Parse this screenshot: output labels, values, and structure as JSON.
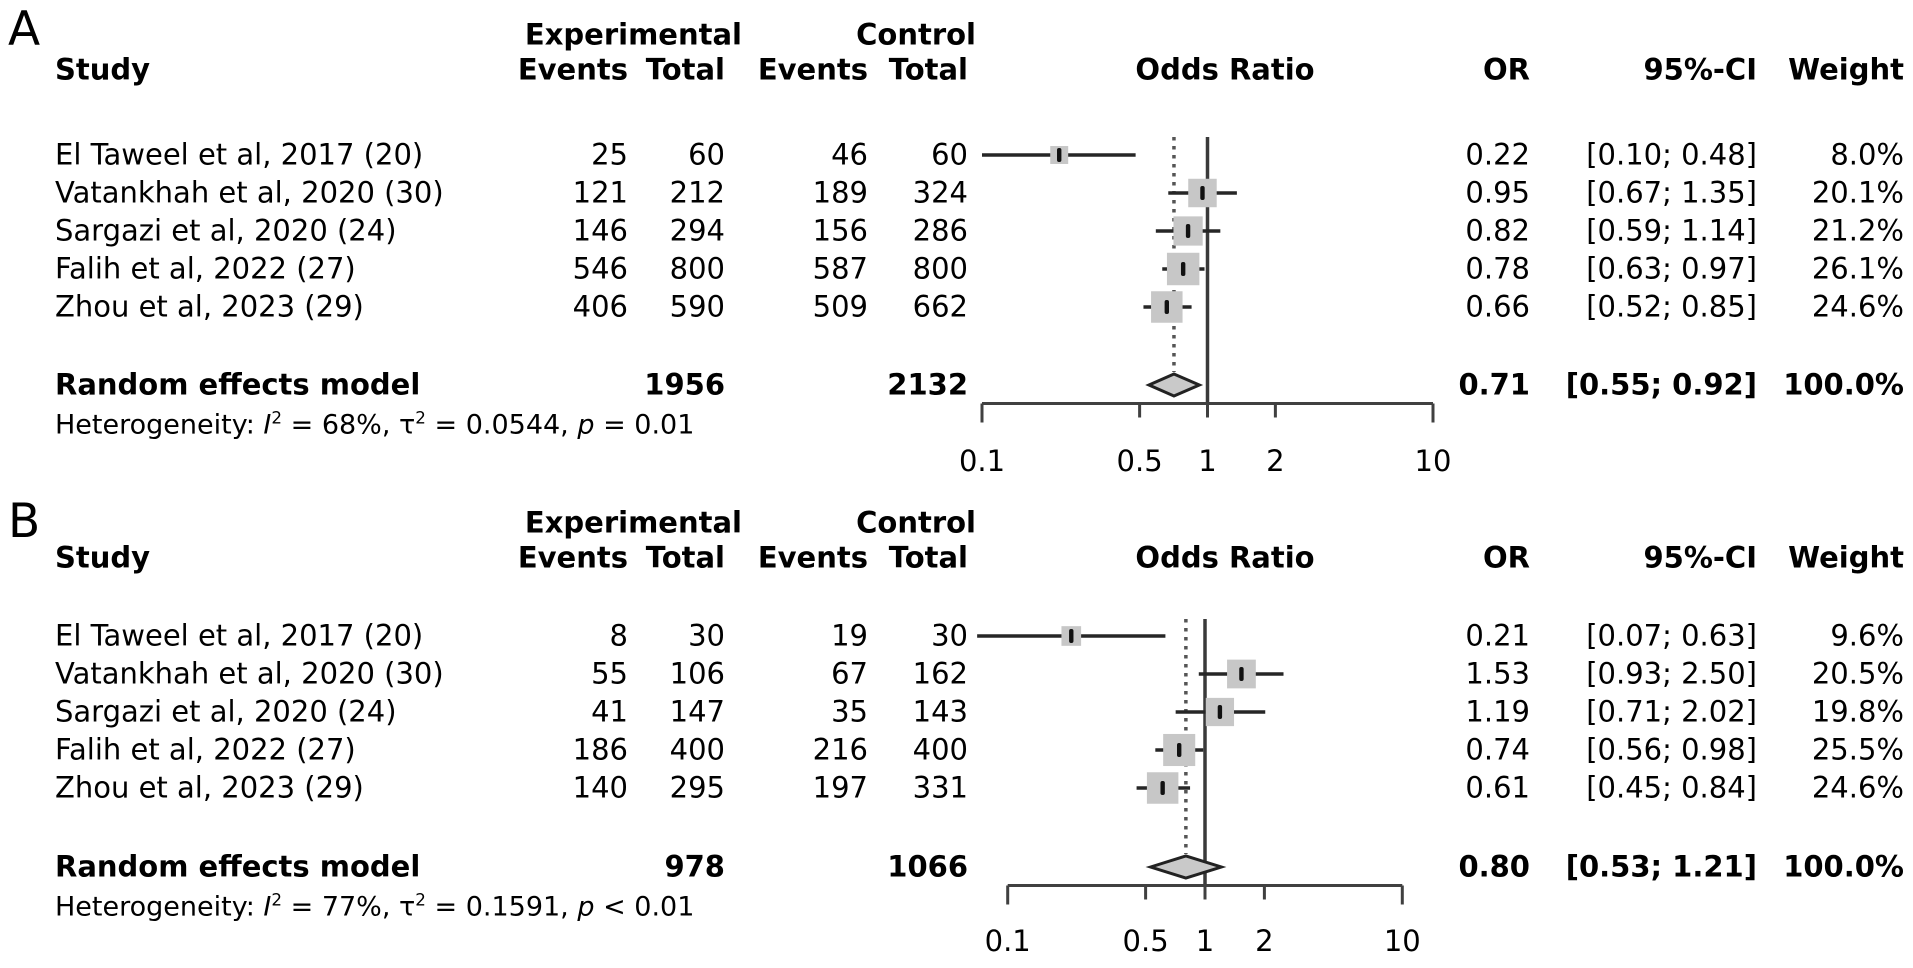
{
  "colors": {
    "background": "#ffffff",
    "text": "#000000",
    "ci_line": "#262626",
    "square_fill": "#c7c7c7",
    "point_marker": "#111111",
    "null_ref_line": "#3a3a3a",
    "pooled_dotted_line": "#555555",
    "diamond_fill": "#c9c9c9",
    "diamond_border": "#222222",
    "axis": "#404040"
  },
  "chart_data": [
    {
      "type": "forest",
      "panel_label": "A",
      "effect_measure": "Odds Ratio",
      "columns": {
        "study": "Study",
        "group_experimental": "Experimental",
        "group_control": "Control",
        "events1": "Events",
        "total1": "Total",
        "events2": "Events",
        "total2": "Total",
        "effect_header": "Odds Ratio",
        "or": "OR",
        "ci": "95%-CI",
        "weight": "Weight"
      },
      "x_axis": {
        "scale": "log",
        "lim": [
          0.1,
          10
        ],
        "ticks": [
          "0.1",
          "0.5",
          "1",
          "2",
          "10"
        ],
        "tick_values": [
          0.1,
          0.5,
          1,
          2,
          10
        ]
      },
      "studies": [
        {
          "name": "El Taweel et al, 2017 (20)",
          "exp_events": "25",
          "exp_total": "60",
          "ctrl_events": "46",
          "ctrl_total": "60",
          "or": 0.22,
          "ci_low": 0.1,
          "ci_high": 0.48,
          "or_label": "0.22",
          "ci_label": "[0.10; 0.48]",
          "weight": 8.0,
          "weight_label": "8.0%"
        },
        {
          "name": "Vatankhah et al, 2020 (30)",
          "exp_events": "121",
          "exp_total": "212",
          "ctrl_events": "189",
          "ctrl_total": "324",
          "or": 0.95,
          "ci_low": 0.67,
          "ci_high": 1.35,
          "or_label": "0.95",
          "ci_label": "[0.67; 1.35]",
          "weight": 20.1,
          "weight_label": "20.1%"
        },
        {
          "name": "Sargazi et al, 2020 (24)",
          "exp_events": "146",
          "exp_total": "294",
          "ctrl_events": "156",
          "ctrl_total": "286",
          "or": 0.82,
          "ci_low": 0.59,
          "ci_high": 1.14,
          "or_label": "0.82",
          "ci_label": "[0.59; 1.14]",
          "weight": 21.2,
          "weight_label": "21.2%"
        },
        {
          "name": "Falih et al, 2022 (27)",
          "exp_events": "546",
          "exp_total": "800",
          "ctrl_events": "587",
          "ctrl_total": "800",
          "or": 0.78,
          "ci_low": 0.63,
          "ci_high": 0.97,
          "or_label": "0.78",
          "ci_label": "[0.63; 0.97]",
          "weight": 26.1,
          "weight_label": "26.1%"
        },
        {
          "name": "Zhou et al, 2023 (29)",
          "exp_events": "406",
          "exp_total": "590",
          "ctrl_events": "509",
          "ctrl_total": "662",
          "or": 0.66,
          "ci_low": 0.52,
          "ci_high": 0.85,
          "or_label": "0.66",
          "ci_label": "[0.52; 0.85]",
          "weight": 24.6,
          "weight_label": "24.6%"
        }
      ],
      "summary": {
        "name": "Random effects model",
        "exp_total": "1956",
        "ctrl_total": "2132",
        "or": 0.71,
        "ci_low": 0.55,
        "ci_high": 0.92,
        "or_label": "0.71",
        "ci_label": "[0.55; 0.92]",
        "weight_label": "100.0%"
      },
      "heterogeneity": {
        "prefix": "Heterogeneity:",
        "i_term": "I",
        "i_sup": "2",
        "i_rest": "= 68%,",
        "tau_term": "τ",
        "tau_sup": "2",
        "tau_rest": "= 0.0544,",
        "p_term": "p",
        "p_rest": "= 0.01"
      }
    },
    {
      "type": "forest",
      "panel_label": "B",
      "effect_measure": "Odds Ratio",
      "columns": {
        "study": "Study",
        "group_experimental": "Experimental",
        "group_control": "Control",
        "events1": "Events",
        "total1": "Total",
        "events2": "Events",
        "total2": "Total",
        "effect_header": "Odds Ratio",
        "or": "OR",
        "ci": "95%-CI",
        "weight": "Weight"
      },
      "x_axis": {
        "scale": "log",
        "lim": [
          0.1,
          10
        ],
        "ticks": [
          "0.1",
          "0.5",
          "1",
          "2",
          "10"
        ],
        "tick_values": [
          0.1,
          0.5,
          1,
          2,
          10
        ]
      },
      "studies": [
        {
          "name": "El Taweel et al, 2017 (20)",
          "exp_events": "8",
          "exp_total": "30",
          "ctrl_events": "19",
          "ctrl_total": "30",
          "or": 0.21,
          "ci_low": 0.07,
          "ci_high": 0.63,
          "or_label": "0.21",
          "ci_label": "[0.07; 0.63]",
          "weight": 9.6,
          "weight_label": "9.6%"
        },
        {
          "name": "Vatankhah et al, 2020 (30)",
          "exp_events": "55",
          "exp_total": "106",
          "ctrl_events": "67",
          "ctrl_total": "162",
          "or": 1.53,
          "ci_low": 0.93,
          "ci_high": 2.5,
          "or_label": "1.53",
          "ci_label": "[0.93; 2.50]",
          "weight": 20.5,
          "weight_label": "20.5%"
        },
        {
          "name": "Sargazi et al, 2020 (24)",
          "exp_events": "41",
          "exp_total": "147",
          "ctrl_events": "35",
          "ctrl_total": "143",
          "or": 1.19,
          "ci_low": 0.71,
          "ci_high": 2.02,
          "or_label": "1.19",
          "ci_label": "[0.71; 2.02]",
          "weight": 19.8,
          "weight_label": "19.8%"
        },
        {
          "name": "Falih et al, 2022 (27)",
          "exp_events": "186",
          "exp_total": "400",
          "ctrl_events": "216",
          "ctrl_total": "400",
          "or": 0.74,
          "ci_low": 0.56,
          "ci_high": 0.98,
          "or_label": "0.74",
          "ci_label": "[0.56; 0.98]",
          "weight": 25.5,
          "weight_label": "25.5%"
        },
        {
          "name": "Zhou et al, 2023 (29)",
          "exp_events": "140",
          "exp_total": "295",
          "ctrl_events": "197",
          "ctrl_total": "331",
          "or": 0.61,
          "ci_low": 0.45,
          "ci_high": 0.84,
          "or_label": "0.61",
          "ci_label": "[0.45; 0.84]",
          "weight": 24.6,
          "weight_label": "24.6%"
        }
      ],
      "summary": {
        "name": "Random effects model",
        "exp_total": "978",
        "ctrl_total": "1066",
        "or": 0.8,
        "ci_low": 0.53,
        "ci_high": 1.21,
        "or_label": "0.80",
        "ci_label": "[0.53; 1.21]",
        "weight_label": "100.0%"
      },
      "heterogeneity": {
        "prefix": "Heterogeneity:",
        "i_term": "I",
        "i_sup": "2",
        "i_rest": "= 77%,",
        "tau_term": "τ",
        "tau_sup": "2",
        "tau_rest": "= 0.1591,",
        "p_term": "p",
        "p_rest": "< 0.01"
      }
    }
  ]
}
